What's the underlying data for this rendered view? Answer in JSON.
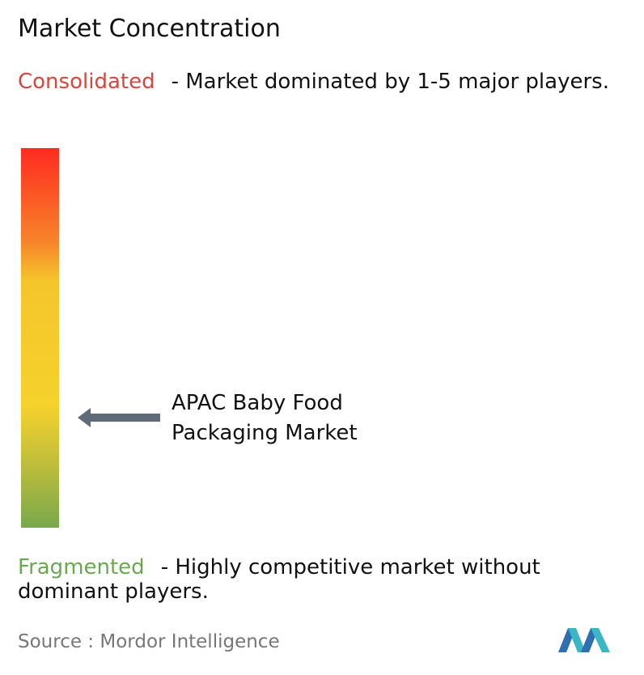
{
  "title": "Market Concentration",
  "consolidated": {
    "label": "Consolidated",
    "description": "- Market dominated by 1-5 major players."
  },
  "marker": {
    "label": "APAC Baby Food Packaging Market"
  },
  "fragmented": {
    "label": "Fragmented",
    "description": "- Highly competitive market without dominant players."
  },
  "source": {
    "label": "Source :",
    "name": "Mordor Intelligence"
  }
}
